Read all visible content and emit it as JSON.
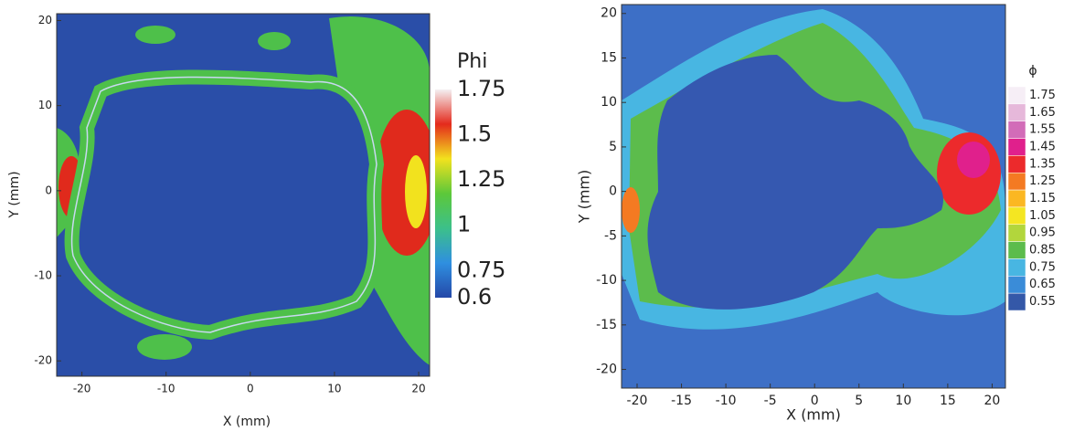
{
  "chart_data": [
    {
      "type": "heatmap",
      "xlabel": "X (mm)",
      "ylabel": "Y (mm)",
      "xlim": [
        -23,
        21.3
      ],
      "ylim": [
        -21.8,
        20.8
      ],
      "xticks": [
        -20,
        -10,
        0,
        10,
        20
      ],
      "yticks": [
        -20,
        -10,
        0,
        10,
        20
      ],
      "colorbar": {
        "title": "Phi",
        "lim": [
          0.6,
          1.75
        ],
        "ticks": [
          1.75,
          1.5,
          1.25,
          1,
          0.75,
          0.6
        ],
        "colors": [
          "#2448a8",
          "#2f8fe0",
          "#3cc08a",
          "#5cc83a",
          "#f2e21e",
          "#e42a1c",
          "#f4f0f2"
        ]
      }
    },
    {
      "type": "heatmap",
      "xlabel": "X (mm)",
      "ylabel": "Y (mm)",
      "xlim": [
        -21.75,
        21.5
      ],
      "ylim": [
        -22.1,
        21
      ],
      "xticks": [
        -20,
        -15,
        -10,
        -5,
        0,
        5,
        10,
        15,
        20
      ],
      "yticks": [
        20,
        15,
        10,
        5,
        0,
        -5,
        -10,
        -15,
        -20
      ],
      "colorbar": {
        "title": "ϕ",
        "levels": [
          1.75,
          1.65,
          1.55,
          1.45,
          1.35,
          1.25,
          1.15,
          1.05,
          0.95,
          0.85,
          0.75,
          0.65,
          0.55
        ],
        "colors": [
          "#f6eef6",
          "#e6b8da",
          "#d26cb8",
          "#e0208c",
          "#ec2a2c",
          "#f47a22",
          "#fbb722",
          "#f4e622",
          "#b2d63c",
          "#5cbc4c",
          "#48b6e2",
          "#3a8cd8",
          "#3458a8"
        ]
      }
    }
  ]
}
